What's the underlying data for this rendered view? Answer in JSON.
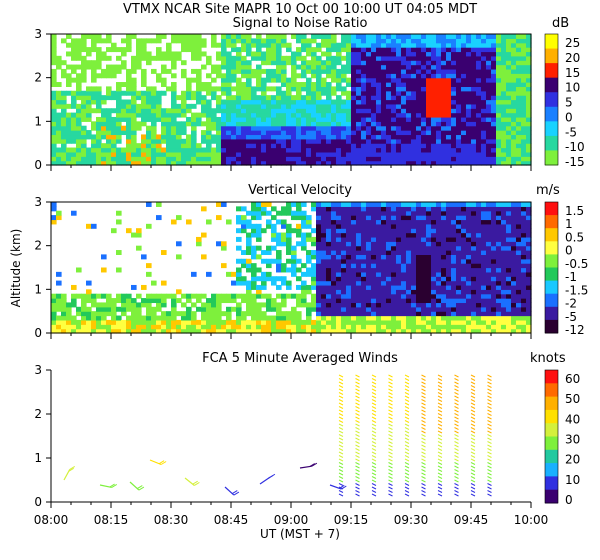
{
  "header": {
    "title_line": "VTMX  NCAR Site  MAPR 10 Oct 00  10:00 UT  04:05  MDT"
  },
  "chart_data": [
    {
      "type": "heatmap",
      "title": "Signal to Noise Ratio",
      "ylabel": "",
      "unit": "dB",
      "ylim": [
        0,
        3
      ],
      "yticks": [
        "0",
        "1",
        "2",
        "3"
      ],
      "colorbar": {
        "labels": [
          "25",
          "20",
          "15",
          "10",
          "5",
          "0",
          "-5",
          "-10",
          "-15"
        ],
        "colors": [
          "#ffff00",
          "#ffb000",
          "#ff2000",
          "#3a0070",
          "#3030e0",
          "#1a80ff",
          "#19d2ff",
          "#27d8a0",
          "#7ef03c"
        ]
      }
    },
    {
      "type": "heatmap",
      "title": "Vertical Velocity",
      "ylabel": "Altitude (km)",
      "unit": "m/s",
      "ylim": [
        0,
        3
      ],
      "yticks": [
        "0",
        "1",
        "2",
        "3"
      ],
      "colorbar": {
        "labels": [
          "1.5",
          "1",
          "0.5",
          "0",
          "-0.5",
          "-1",
          "-1.5",
          "-2",
          "-5",
          "-12"
        ],
        "colors": [
          "#ff1010",
          "#ff6a00",
          "#ffc800",
          "#ffff40",
          "#7ef03c",
          "#22c95a",
          "#19c8ff",
          "#1a70ff",
          "#3a1aa0",
          "#2a0030"
        ]
      }
    },
    {
      "type": "scatter",
      "title": "FCA 5 Minute Averaged Winds",
      "ylabel": "",
      "unit": "knots",
      "ylim": [
        0,
        3
      ],
      "yticks": [
        "0",
        "1",
        "2",
        "3"
      ],
      "colorbar": {
        "labels": [
          "60",
          "50",
          "40",
          "30",
          "20",
          "10",
          "0"
        ],
        "colors": [
          "#ff1010",
          "#ff6a00",
          "#ffb000",
          "#ffe000",
          "#d4f03c",
          "#7ef03c",
          "#22c9a0",
          "#19b0ff",
          "#3030e0",
          "#3a0070"
        ]
      }
    }
  ],
  "x_axis": {
    "ticks": [
      "08:00",
      "08:15",
      "08:30",
      "08:45",
      "09:00",
      "09:15",
      "09:30",
      "09:45",
      "10:00"
    ],
    "label": "UT  (MST + 7)"
  }
}
